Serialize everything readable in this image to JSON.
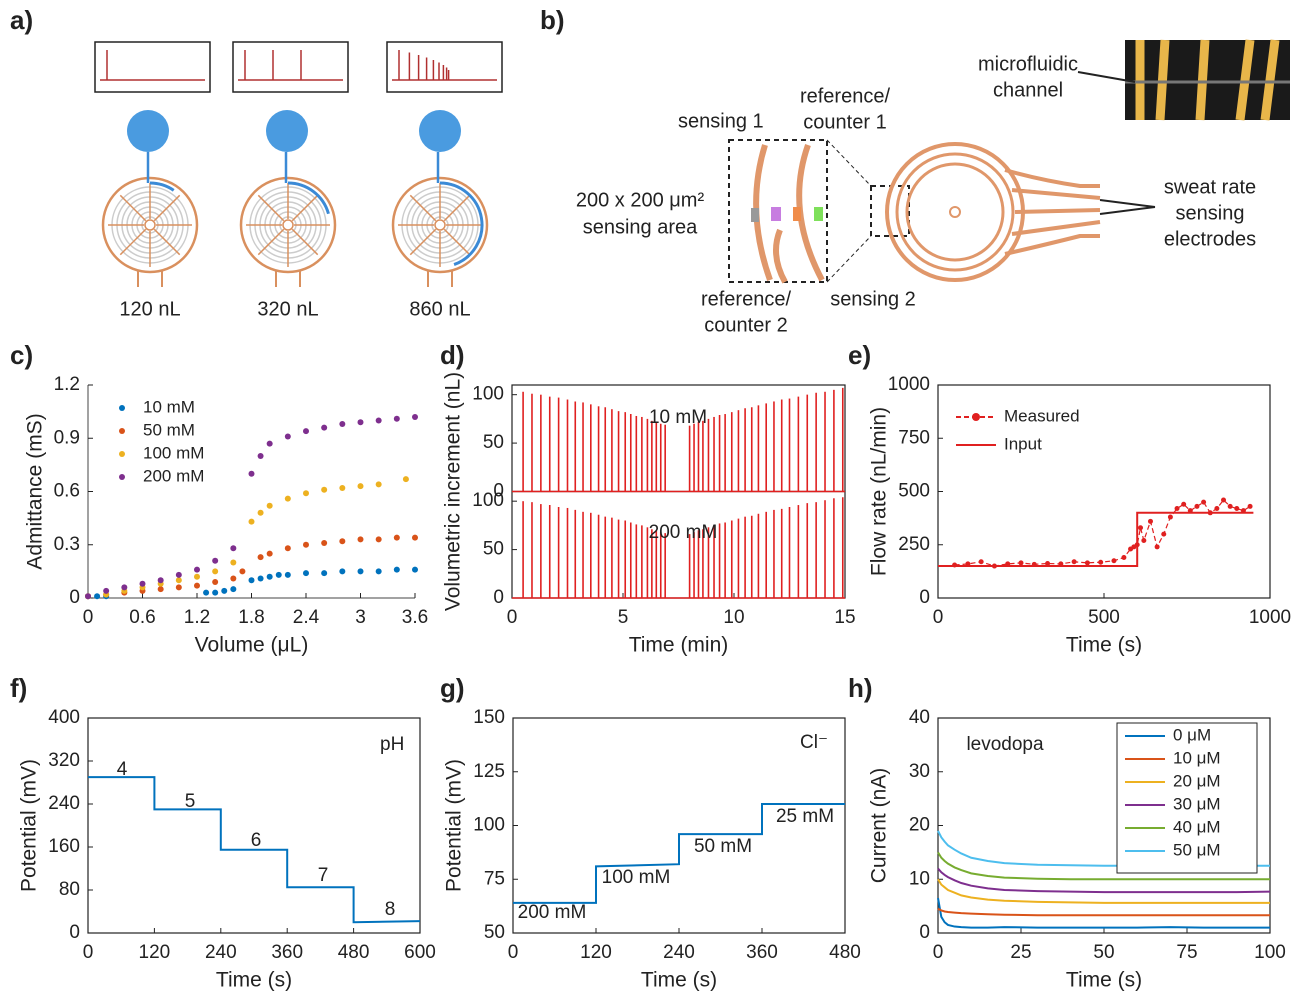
{
  "diagram_a": {
    "panel_label": "a)",
    "volume_labels": [
      "120 nL",
      "320 nL",
      "860 nL"
    ]
  },
  "diagram_b": {
    "panel_label": "b)",
    "labels": {
      "sensing_1": "sensing 1",
      "reference_counter_1": [
        "reference/",
        "counter 1"
      ],
      "sensing_area": [
        "200 x 200 μm²",
        "sensing area"
      ],
      "reference_counter_2": [
        "reference/",
        "counter 2"
      ],
      "sensing_2": "sensing 2",
      "microfluidic_channel": [
        "microfluidic",
        "channel"
      ],
      "sweat_rate_electrodes": [
        "sweat rate",
        "sensing",
        "electrodes"
      ]
    }
  },
  "chart_data": [
    {
      "type": "scatter",
      "panel_label": "c)",
      "x_label": "Volume (μL)",
      "y_label": "Admittance (mS)",
      "xlim": [
        0,
        3.6
      ],
      "ylim": [
        0,
        1.2
      ],
      "xticks": [
        0,
        0.6,
        1.2,
        1.8,
        2.4,
        3,
        3.6
      ],
      "yticks": [
        0,
        0.3,
        0.6,
        0.9,
        1.2
      ],
      "legend": "upper left",
      "series": [
        {
          "name": "10 mM",
          "color": "#0072bd",
          "x": [
            0,
            0.1,
            0.2,
            1.3,
            1.4,
            1.5,
            1.6,
            1.8,
            1.9,
            2.0,
            2.1,
            2.2,
            2.4,
            2.6,
            2.8,
            3.0,
            3.2,
            3.4,
            3.6
          ],
          "values": [
            0.01,
            0.01,
            0.01,
            0.03,
            0.03,
            0.04,
            0.05,
            0.1,
            0.11,
            0.12,
            0.13,
            0.13,
            0.14,
            0.14,
            0.15,
            0.15,
            0.15,
            0.16,
            0.16
          ]
        },
        {
          "name": "50 mM",
          "color": "#d95319",
          "x": [
            0,
            0.2,
            0.4,
            0.6,
            0.8,
            1.0,
            1.2,
            1.4,
            1.6,
            1.7,
            1.9,
            2.0,
            2.2,
            2.4,
            2.6,
            2.8,
            3.0,
            3.2,
            3.4,
            3.6
          ],
          "values": [
            0.01,
            0.02,
            0.03,
            0.04,
            0.05,
            0.06,
            0.07,
            0.09,
            0.11,
            0.15,
            0.23,
            0.25,
            0.28,
            0.3,
            0.31,
            0.32,
            0.33,
            0.33,
            0.34,
            0.34
          ]
        },
        {
          "name": "100 mM",
          "color": "#edb120",
          "x": [
            0,
            0.2,
            0.4,
            0.6,
            0.8,
            1.0,
            1.2,
            1.4,
            1.6,
            1.8,
            1.9,
            2.0,
            2.2,
            2.4,
            2.6,
            2.8,
            3.0,
            3.2,
            3.5
          ],
          "values": [
            0.01,
            0.02,
            0.04,
            0.06,
            0.08,
            0.1,
            0.12,
            0.15,
            0.2,
            0.43,
            0.48,
            0.52,
            0.56,
            0.59,
            0.61,
            0.62,
            0.63,
            0.64,
            0.67
          ]
        },
        {
          "name": "200 mM",
          "color": "#7e2f8e",
          "x": [
            0,
            0.2,
            0.4,
            0.6,
            0.8,
            1.0,
            1.2,
            1.4,
            1.6,
            1.8,
            1.9,
            2.0,
            2.2,
            2.4,
            2.6,
            2.8,
            3.0,
            3.2,
            3.4,
            3.6
          ],
          "values": [
            0.01,
            0.04,
            0.06,
            0.08,
            0.1,
            0.13,
            0.16,
            0.21,
            0.28,
            0.7,
            0.8,
            0.87,
            0.91,
            0.94,
            0.96,
            0.98,
            0.99,
            1.0,
            1.01,
            1.02
          ]
        }
      ]
    },
    {
      "type": "spike",
      "panel_label": "d)",
      "x_label": "Time (min)",
      "y_label": "Volumetric increment (nL)",
      "xlim": [
        0,
        15
      ],
      "ylim": [
        0,
        110
      ],
      "xticks": [
        0,
        5,
        10,
        15
      ],
      "yticks": [
        0,
        50,
        100
      ],
      "series": [
        {
          "name": "10 mM",
          "color": "#e02020",
          "x": [
            0.5,
            0.9,
            1.3,
            1.7,
            2.1,
            2.5,
            2.85,
            3.2,
            3.55,
            3.9,
            4.2,
            4.5,
            4.8,
            5.1,
            5.35,
            5.6,
            5.85,
            6.1,
            6.3,
            6.5,
            6.7,
            6.9,
            8.0,
            8.2,
            8.4,
            8.6,
            8.85,
            9.1,
            9.35,
            9.6,
            9.9,
            10.2,
            10.5,
            10.8,
            11.1,
            11.45,
            11.8,
            12.15,
            12.5,
            12.9,
            13.3,
            13.7,
            14.1,
            14.5,
            14.9
          ],
          "values": [
            103,
            101,
            100,
            98,
            97,
            95,
            93,
            92,
            90,
            88,
            87,
            85,
            83,
            82,
            80,
            78,
            77,
            75,
            73,
            72,
            70,
            69,
            68,
            70,
            72,
            73,
            75,
            77,
            79,
            80,
            82,
            84,
            86,
            87,
            89,
            91,
            93,
            95,
            96,
            98,
            100,
            102,
            103,
            105,
            107
          ]
        },
        {
          "name": "200 mM",
          "color": "#e02020",
          "x": [
            0.5,
            0.9,
            1.3,
            1.7,
            2.1,
            2.5,
            2.85,
            3.2,
            3.55,
            3.9,
            4.2,
            4.5,
            4.8,
            5.1,
            5.35,
            5.6,
            5.85,
            6.1,
            6.3,
            6.5,
            6.7,
            6.9,
            8.0,
            8.2,
            8.4,
            8.6,
            8.85,
            9.1,
            9.35,
            9.6,
            9.9,
            10.2,
            10.5,
            10.8,
            11.1,
            11.45,
            11.8,
            12.15,
            12.5,
            12.9,
            13.3,
            13.7,
            14.1,
            14.5,
            14.9
          ],
          "values": [
            100,
            99,
            97,
            96,
            94,
            93,
            91,
            89,
            88,
            86,
            84,
            83,
            81,
            80,
            78,
            76,
            75,
            73,
            71,
            70,
            68,
            67,
            66,
            68,
            70,
            71,
            73,
            75,
            77,
            78,
            80,
            82,
            84,
            85,
            87,
            89,
            91,
            92,
            94,
            96,
            98,
            99,
            101,
            103,
            104
          ]
        }
      ]
    },
    {
      "type": "line",
      "panel_label": "e)",
      "x_label": "Time (s)",
      "y_label": "Flow rate (nL/min)",
      "xlim": [
        0,
        1000
      ],
      "ylim": [
        0,
        1000
      ],
      "xticks": [
        0,
        500,
        1000
      ],
      "yticks": [
        0,
        250,
        500,
        750,
        1000
      ],
      "legend": "upper left",
      "series": [
        {
          "name": "Measured",
          "color": "#e02020",
          "dashed": true,
          "marker": "circle",
          "x": [
            50,
            90,
            130,
            170,
            210,
            250,
            290,
            330,
            370,
            410,
            450,
            490,
            530,
            560,
            580,
            590,
            600,
            610,
            620,
            640,
            660,
            680,
            700,
            720,
            740,
            760,
            780,
            800,
            820,
            840,
            860,
            880,
            900,
            920,
            940
          ],
          "values": [
            155,
            160,
            170,
            150,
            160,
            165,
            158,
            162,
            160,
            170,
            165,
            168,
            175,
            190,
            230,
            240,
            250,
            330,
            270,
            360,
            240,
            300,
            380,
            420,
            440,
            410,
            430,
            450,
            400,
            420,
            460,
            430,
            420,
            410,
            430
          ]
        },
        {
          "name": "Input",
          "color": "#e02020",
          "x": [
            0,
            600,
            600,
            950
          ],
          "values": [
            150,
            150,
            400,
            400
          ]
        }
      ]
    },
    {
      "type": "line",
      "panel_label": "f)",
      "x_label": "Time (s)",
      "y_label": "Potential (mV)",
      "xlim": [
        0,
        600
      ],
      "ylim": [
        0,
        400
      ],
      "xticks": [
        0,
        120,
        240,
        360,
        480,
        600
      ],
      "yticks": [
        0,
        80,
        160,
        240,
        320,
        400
      ],
      "annotations": [
        "4",
        "5",
        "6",
        "7",
        "8",
        "pH"
      ],
      "series": [
        {
          "color": "#0072bd",
          "x": [
            0,
            120,
            120,
            240,
            240,
            360,
            360,
            480,
            480,
            600
          ],
          "values": [
            290,
            290,
            230,
            230,
            155,
            155,
            85,
            85,
            20,
            22
          ]
        }
      ]
    },
    {
      "type": "line",
      "panel_label": "g)",
      "x_label": "Time (s)",
      "y_label": "Potential (mV)",
      "xlim": [
        0,
        480
      ],
      "ylim": [
        50,
        150
      ],
      "xticks": [
        0,
        120,
        240,
        360,
        480
      ],
      "yticks": [
        50,
        75,
        100,
        125,
        150
      ],
      "annotations": [
        "200 mM",
        "100 mM",
        "50 mM",
        "25 mM",
        "Cl⁻"
      ],
      "series": [
        {
          "color": "#0072bd",
          "x": [
            0,
            120,
            120,
            240,
            240,
            360,
            360,
            480
          ],
          "values": [
            64,
            64,
            81,
            82,
            96,
            96,
            110,
            110
          ]
        }
      ]
    },
    {
      "type": "line",
      "panel_label": "h)",
      "x_label": "Time (s)",
      "y_label": "Current (nA)",
      "xlim": [
        0,
        100
      ],
      "ylim": [
        0,
        40
      ],
      "xticks": [
        0,
        25,
        50,
        75,
        100
      ],
      "yticks": [
        0,
        10,
        20,
        30,
        40
      ],
      "legend": "upper right",
      "annotations": [
        "levodopa"
      ],
      "x": [
        0,
        1,
        2,
        3,
        5,
        7,
        10,
        15,
        20,
        30,
        40,
        50,
        60,
        70,
        80,
        90,
        100
      ],
      "series": [
        {
          "name": "0 μM",
          "color": "#0072bd",
          "values": [
            6.5,
            3,
            2,
            1.5,
            1.2,
            1.1,
            1,
            1,
            1.1,
            1,
            1,
            1,
            1,
            1.1,
            1,
            1,
            1
          ]
        },
        {
          "name": "10 μM",
          "color": "#d95319",
          "values": [
            4.5,
            4.2,
            4,
            3.9,
            3.8,
            3.7,
            3.6,
            3.5,
            3.4,
            3.3,
            3.3,
            3.3,
            3.3,
            3.3,
            3.3,
            3.3,
            3.3
          ]
        },
        {
          "name": "20 μM",
          "color": "#edb120",
          "values": [
            10,
            9,
            8.5,
            8,
            7.5,
            7,
            6.6,
            6.2,
            6,
            5.8,
            5.7,
            5.6,
            5.6,
            5.6,
            5.6,
            5.6,
            5.6
          ]
        },
        {
          "name": "30 μM",
          "color": "#7e2f8e",
          "values": [
            12,
            11.3,
            10.8,
            10.4,
            9.8,
            9.3,
            8.8,
            8.3,
            8,
            7.8,
            7.7,
            7.6,
            7.6,
            7.6,
            7.6,
            7.6,
            7.7
          ]
        },
        {
          "name": "40 μM",
          "color": "#77ac30",
          "values": [
            15,
            14,
            13.4,
            12.9,
            12.2,
            11.7,
            11.1,
            10.6,
            10.3,
            10.1,
            10,
            10,
            10,
            10,
            10,
            10,
            10
          ]
        },
        {
          "name": "50 μM",
          "color": "#4dbeee",
          "values": [
            19,
            17.8,
            17,
            16.3,
            15.5,
            14.8,
            14,
            13.4,
            13,
            12.7,
            12.6,
            12.5,
            12.5,
            12.5,
            12.5,
            12.5,
            12.5
          ]
        }
      ]
    }
  ]
}
